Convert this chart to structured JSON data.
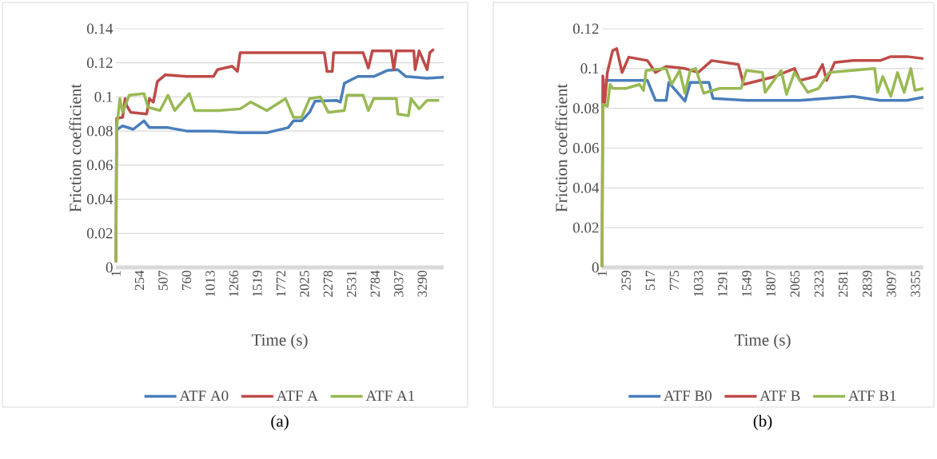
{
  "chart_data": [
    {
      "type": "line",
      "xlabel": "Time (s)",
      "ylabel": "Friction coefficient",
      "annotations": [
        "(a)"
      ],
      "xlim": [
        1,
        3520
      ],
      "ylim": [
        0,
        0.14
      ],
      "xticks": [
        1,
        254,
        507,
        760,
        1013,
        1266,
        1519,
        1772,
        2025,
        2278,
        2531,
        2784,
        3037,
        3290
      ],
      "yticks": [
        0,
        0.02,
        0.04,
        0.06,
        0.08,
        0.1,
        0.12,
        0.14
      ],
      "grid": "y",
      "legend": "bottom",
      "line_style": "solid",
      "marker": "none",
      "series": [
        {
          "name": "ATF A0",
          "color": "#4a7ebb",
          "x": [
            15,
            73,
            187,
            302,
            360,
            560,
            761,
            1048,
            1335,
            1621,
            1851,
            1908,
            1994,
            2080,
            2138,
            2367,
            2410,
            2453,
            2597,
            2769,
            2912,
            3027,
            3113,
            3342,
            3520
          ],
          "values": [
            0.081,
            0.083,
            0.081,
            0.086,
            0.082,
            0.082,
            0.08,
            0.08,
            0.079,
            0.079,
            0.082,
            0.086,
            0.086,
            0.091,
            0.0975,
            0.098,
            0.097,
            0.108,
            0.112,
            0.112,
            0.1155,
            0.116,
            0.112,
            0.111,
            0.1115
          ]
        },
        {
          "name": "ATF A",
          "color": "#be4b48",
          "x": [
            1,
            9,
            73,
            100,
            116,
            159,
            331,
            360,
            403,
            446,
            532,
            761,
            1048,
            1091,
            1249,
            1306,
            1335,
            1621,
            1908,
            2238,
            2267,
            2324,
            2338,
            2654,
            2711,
            2754,
            2955,
            2984,
            3012,
            3199,
            3213,
            3256,
            3342,
            3371,
            3414
          ],
          "values": [
            0.003,
            0.0875,
            0.088,
            0.099,
            0.095,
            0.091,
            0.09,
            0.099,
            0.097,
            0.109,
            0.113,
            0.112,
            0.112,
            0.116,
            0.118,
            0.115,
            0.126,
            0.126,
            0.126,
            0.126,
            0.115,
            0.115,
            0.126,
            0.126,
            0.117,
            0.127,
            0.127,
            0.116,
            0.127,
            0.127,
            0.116,
            0.127,
            0.116,
            0.126,
            0.128
          ]
        },
        {
          "name": "ATF A1",
          "color": "#98b954",
          "x": [
            1,
            9,
            44,
            73,
            144,
            302,
            345,
            474,
            560,
            632,
            790,
            847,
            1105,
            1335,
            1449,
            1621,
            1822,
            1908,
            1994,
            2080,
            2195,
            2281,
            2453,
            2482,
            2654,
            2711,
            2769,
            3012,
            3027,
            3141,
            3170,
            3256,
            3342,
            3471
          ],
          "values": [
            0.003,
            0.082,
            0.099,
            0.091,
            0.101,
            0.102,
            0.094,
            0.092,
            0.101,
            0.092,
            0.102,
            0.092,
            0.092,
            0.093,
            0.097,
            0.092,
            0.099,
            0.088,
            0.088,
            0.099,
            0.1,
            0.091,
            0.092,
            0.101,
            0.101,
            0.092,
            0.099,
            0.099,
            0.09,
            0.089,
            0.099,
            0.093,
            0.098,
            0.098
          ]
        }
      ]
    },
    {
      "type": "line",
      "xlabel": "Time (s)",
      "ylabel": "Friction coefficient",
      "annotations": [
        "(b)"
      ],
      "xlim": [
        1,
        3440
      ],
      "ylim": [
        0,
        0.12
      ],
      "xticks": [
        1,
        259,
        517,
        775,
        1033,
        1291,
        1549,
        1807,
        2065,
        2323,
        2581,
        2839,
        3097,
        3355
      ],
      "yticks": [
        0,
        0.02,
        0.04,
        0.06,
        0.08,
        0.1,
        0.12
      ],
      "grid": "y",
      "legend": "bottom",
      "line_style": "solid",
      "marker": "none",
      "series": [
        {
          "name": "ATF B0",
          "color": "#4a7ebb",
          "x": [
            30,
            87,
            487,
            530,
            573,
            688,
            716,
            888,
            945,
            1145,
            1188,
            1546,
            1832,
            2118,
            2404,
            2690,
            2976,
            3263,
            3440
          ],
          "values": [
            0.094,
            0.094,
            0.094,
            0.089,
            0.084,
            0.084,
            0.093,
            0.0836,
            0.093,
            0.093,
            0.085,
            0.084,
            0.084,
            0.084,
            0.085,
            0.086,
            0.084,
            0.084,
            0.0856
          ]
        },
        {
          "name": "ATF B",
          "color": "#be4b48",
          "x": [
            1,
            10,
            30,
            58,
            115,
            158,
            216,
            287,
            487,
            573,
            688,
            888,
            1031,
            1174,
            1317,
            1460,
            1517,
            1832,
            2060,
            2118,
            2289,
            2361,
            2404,
            2490,
            2690,
            2976,
            3091,
            3263,
            3440
          ],
          "values": [
            0.0007,
            0.0963,
            0.083,
            0.098,
            0.109,
            0.11,
            0.098,
            0.1057,
            0.104,
            0.098,
            0.101,
            0.1,
            0.098,
            0.104,
            0.103,
            0.102,
            0.092,
            0.0957,
            0.1,
            0.094,
            0.096,
            0.102,
            0.094,
            0.103,
            0.104,
            0.104,
            0.106,
            0.106,
            0.105
          ]
        },
        {
          "name": "ATF B1",
          "color": "#98b954",
          "x": [
            1,
            10,
            58,
            87,
            115,
            258,
            402,
            445,
            473,
            688,
            745,
            831,
            888,
            945,
            1003,
            1088,
            1260,
            1489,
            1546,
            1718,
            1746,
            1918,
            1975,
            2060,
            2204,
            2318,
            2433,
            2919,
            2948,
            3005,
            3091,
            3163,
            3234,
            3306,
            3349,
            3440
          ],
          "values": [
            0,
            0.082,
            0.081,
            0.092,
            0.09,
            0.09,
            0.092,
            0.089,
            0.099,
            0.1,
            0.092,
            0.099,
            0.0876,
            0.099,
            0.1,
            0.0876,
            0.09,
            0.09,
            0.099,
            0.098,
            0.088,
            0.099,
            0.087,
            0.098,
            0.088,
            0.09,
            0.098,
            0.1,
            0.088,
            0.096,
            0.086,
            0.098,
            0.088,
            0.1,
            0.089,
            0.09
          ]
        }
      ]
    }
  ]
}
